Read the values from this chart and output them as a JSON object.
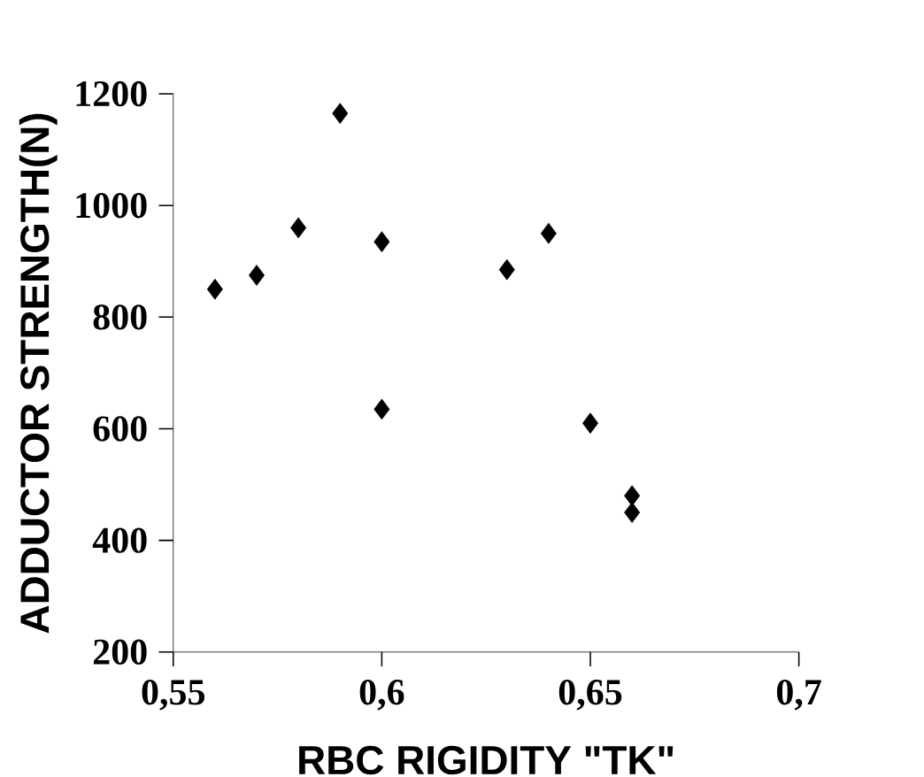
{
  "chart_data": {
    "type": "scatter",
    "xlabel": "RBC RIGIDITY \"TK\"",
    "ylabel": "ADDUCTOR STRENGTH(N)",
    "x": [
      0.56,
      0.57,
      0.58,
      0.59,
      0.6,
      0.6,
      0.63,
      0.64,
      0.65,
      0.66,
      0.66
    ],
    "values": [
      850,
      875,
      960,
      1165,
      935,
      635,
      885,
      950,
      610,
      480,
      450
    ],
    "color": "#000000",
    "marker": "diamond",
    "xlim": [
      0.55,
      0.7
    ],
    "xticks": [
      {
        "value": 0.55,
        "label": "0,55"
      },
      {
        "value": 0.6,
        "label": "0,6"
      },
      {
        "value": 0.65,
        "label": "0,65"
      },
      {
        "value": 0.7,
        "label": "0,7"
      }
    ],
    "ylim": [
      200,
      1200
    ],
    "yticks": [
      200,
      400,
      600,
      800,
      1000,
      1200
    ]
  }
}
